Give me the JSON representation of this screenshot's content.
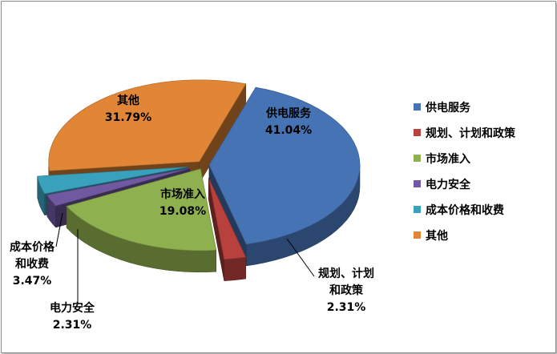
{
  "chart_data": {
    "type": "pie",
    "style": "3d-exploded",
    "legend_position": "right",
    "series": [
      {
        "name": "供电服务",
        "value": 41.04,
        "label": "41.04%",
        "color": "#4673b3",
        "label_lines": [
          "供电服务"
        ]
      },
      {
        "name": "规划、计划和政策",
        "value": 2.31,
        "label": "2.31%",
        "color": "#b8403d",
        "label_lines": [
          "规划、计划",
          "和政策"
        ]
      },
      {
        "name": "市场准入",
        "value": 19.08,
        "label": "19.08%",
        "color": "#8fb04f",
        "label_lines": [
          "市场准入"
        ]
      },
      {
        "name": "电力安全",
        "value": 2.31,
        "label": "2.31%",
        "color": "#7059a0",
        "label_lines": [
          "电力安全"
        ]
      },
      {
        "name": "成本价格和收费",
        "value": 3.47,
        "label": "3.47%",
        "color": "#3aa1bd",
        "label_lines": [
          "成本价格",
          "和收费"
        ]
      },
      {
        "name": "其他",
        "value": 31.79,
        "label": "31.79%",
        "color": "#e08636",
        "label_lines": [
          "其他"
        ]
      }
    ]
  }
}
